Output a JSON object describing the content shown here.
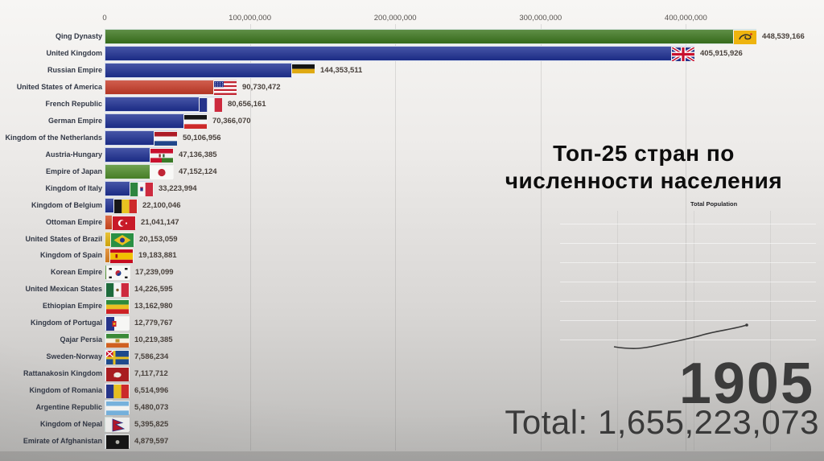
{
  "chart_data": {
    "type": "bar",
    "orientation": "horizontal",
    "title": "Топ-25 стран по численности населения",
    "title_lines": [
      "Топ-25 стран по",
      "численности населения"
    ],
    "year": "1905",
    "total_label": "Total: 1,655,223,073",
    "xlabel": "",
    "ylabel": "",
    "xlim": [
      0,
      450000000
    ],
    "grid": true,
    "axis_ticks": [
      {
        "value": 0,
        "label": "0"
      },
      {
        "value": 100000000,
        "label": "100,000,000"
      },
      {
        "value": 200000000,
        "label": "200,000,000"
      },
      {
        "value": 300000000,
        "label": "300,000,000"
      },
      {
        "value": 400000000,
        "label": "400,000,000"
      }
    ],
    "inset": {
      "type": "line",
      "label": "Total Population"
    },
    "bars": [
      {
        "label": "Qing Dynasty",
        "value": 448539166,
        "value_text": "448,539,166",
        "color": "#3c761e",
        "flag": "qing-dynasty"
      },
      {
        "label": "United Kingdom",
        "value": 405915926,
        "value_text": "405,915,926",
        "color": "#1e3093",
        "flag": "united-kingdom"
      },
      {
        "label": "Russian Empire",
        "value": 144353511,
        "value_text": "144,353,511",
        "color": "#1e3093",
        "flag": "russian-empire"
      },
      {
        "label": "United States of America",
        "value": 90730472,
        "value_text": "90,730,472",
        "color": "#c73b28",
        "flag": "usa"
      },
      {
        "label": "French Republic",
        "value": 80656161,
        "value_text": "80,656,161",
        "color": "#1e3093",
        "flag": "france"
      },
      {
        "label": "German Empire",
        "value": 70366070,
        "value_text": "70,366,070",
        "color": "#1e3093",
        "flag": "german-empire"
      },
      {
        "label": "Kingdom of the Netherlands",
        "value": 50106956,
        "value_text": "50,106,956",
        "color": "#1e3093",
        "flag": "netherlands"
      },
      {
        "label": "Austria-Hungary",
        "value": 47136385,
        "value_text": "47,136,385",
        "color": "#1e3093",
        "flag": "austria-hungary"
      },
      {
        "label": "Empire of Japan",
        "value": 47152124,
        "value_text": "47,152,124",
        "color": "#4f8c2b",
        "flag": "japan"
      },
      {
        "label": "Kingdom of Italy",
        "value": 33223994,
        "value_text": "33,223,994",
        "color": "#1e3093",
        "flag": "italy"
      },
      {
        "label": "Kingdom of Belgium",
        "value": 22100046,
        "value_text": "22,100,046",
        "color": "#1e3093",
        "flag": "belgium"
      },
      {
        "label": "Ottoman Empire",
        "value": 21041147,
        "value_text": "21,041,147",
        "color": "#d64a1f",
        "flag": "ottoman"
      },
      {
        "label": "United States of Brazil",
        "value": 20153059,
        "value_text": "20,153,059",
        "color": "#e3b40e",
        "flag": "brazil"
      },
      {
        "label": "Kingdom of Spain",
        "value": 19183881,
        "value_text": "19,183,881",
        "color": "#e0821d",
        "flag": "spain"
      },
      {
        "label": "Korean Empire",
        "value": 17239099,
        "value_text": "17,239,099",
        "color": "#57912f",
        "flag": "korean-empire"
      },
      {
        "label": "United Mexican States",
        "value": 14226595,
        "value_text": "14,226,595",
        "color": "#1d5c38",
        "flag": "mexico"
      },
      {
        "label": "Ethiopian Empire",
        "value": 13162980,
        "value_text": "13,162,980",
        "color": "#2d7a35",
        "flag": "ethiopia"
      },
      {
        "label": "Kingdom of Portugal",
        "value": 12779767,
        "value_text": "12,779,767",
        "color": "#26348b",
        "flag": "portugal"
      },
      {
        "label": "Qajar Persia",
        "value": 10219385,
        "value_text": "10,219,385",
        "color": "#3a8a38",
        "flag": "qajar-persia"
      },
      {
        "label": "Sweden-Norway",
        "value": 7586234,
        "value_text": "7,586,234",
        "color": "#1e4a8c",
        "flag": "sweden-norway"
      },
      {
        "label": "Rattanakosin Kingdom",
        "value": 7117712,
        "value_text": "7,117,712",
        "color": "#a81c20",
        "flag": "rattanakosin"
      },
      {
        "label": "Kingdom of Romania",
        "value": 6514996,
        "value_text": "6,514,996",
        "color": "#cc2222",
        "flag": "romania"
      },
      {
        "label": "Argentine Republic",
        "value": 5480073,
        "value_text": "5,480,073",
        "color": "#78b4e0",
        "flag": "argentina"
      },
      {
        "label": "Kingdom of Nepal",
        "value": 5395825,
        "value_text": "5,395,825",
        "color": "#45862c",
        "flag": "nepal"
      },
      {
        "label": "Emirate of Afghanistan",
        "value": 4879597,
        "value_text": "4,879,597",
        "color": "#1a1a1a",
        "flag": "afghanistan"
      }
    ]
  }
}
